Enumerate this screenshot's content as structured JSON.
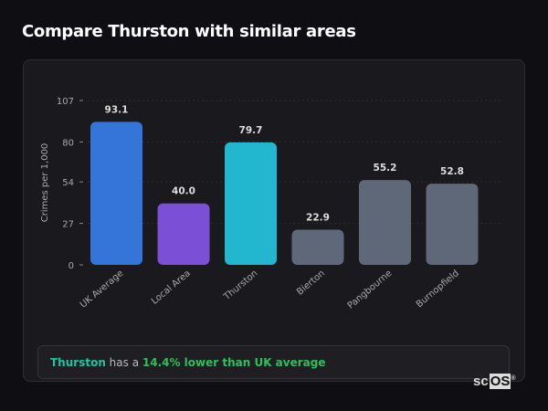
{
  "title": "Compare Thurston with similar areas",
  "chart_data": {
    "type": "bar",
    "categories": [
      "UK Average",
      "Local Area",
      "Thurston",
      "Bierton",
      "Pangbourne",
      "Burnopfield"
    ],
    "values": [
      93.1,
      40.0,
      79.7,
      22.9,
      55.2,
      52.8
    ],
    "colors": [
      "#3574d9",
      "#7b4fd6",
      "#22b6cf",
      "#5f6878",
      "#5f6878",
      "#5f6878"
    ],
    "ylabel": "Crimes per 1,000",
    "yticks": [
      0,
      27,
      54,
      80,
      107
    ],
    "ylim": [
      0,
      107
    ],
    "grid": true
  },
  "summary": {
    "area": "Thurston",
    "middle": " has a ",
    "highlight": "14.4% lower than UK average"
  },
  "logo": {
    "prefix": "sc",
    "boxed": "OS",
    "mark": "®"
  }
}
